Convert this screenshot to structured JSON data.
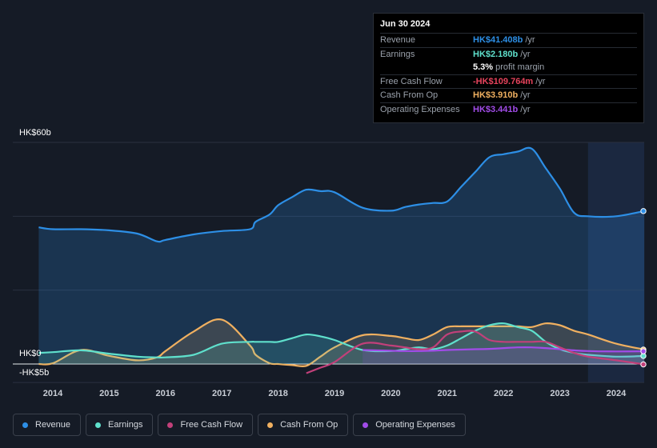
{
  "tooltip": {
    "date": "Jun 30 2024",
    "rows": [
      {
        "label": "Revenue",
        "value": "HK$41.408b",
        "unit": "/yr",
        "color": "#2d8fe6"
      },
      {
        "label": "Earnings",
        "value": "HK$2.180b",
        "unit": "/yr",
        "color": "#5fe0cc"
      },
      {
        "label": "",
        "value": "5.3%",
        "unit": "profit margin",
        "color": "#ffffff"
      },
      {
        "label": "Free Cash Flow",
        "value": "-HK$109.764m",
        "unit": "/yr",
        "color": "#e6435c"
      },
      {
        "label": "Cash From Op",
        "value": "HK$3.910b",
        "unit": "/yr",
        "color": "#f0b060"
      },
      {
        "label": "Operating Expenses",
        "value": "HK$3.441b",
        "unit": "/yr",
        "color": "#a14ce8"
      }
    ]
  },
  "chart_data": {
    "type": "area",
    "y_axis": {
      "top_label": "HK$60b",
      "zero_label": "HK$0",
      "bottom_label": "-HK$5b",
      "ylim": [
        -5,
        60
      ]
    },
    "x": [
      2013.75,
      2014.0,
      2014.5,
      2015.0,
      2015.5,
      2015.85,
      2016.0,
      2016.5,
      2017.0,
      2017.5,
      2017.6,
      2017.85,
      2018.0,
      2018.25,
      2018.5,
      2018.75,
      2019.0,
      2019.5,
      2020.0,
      2020.25,
      2020.5,
      2020.75,
      2021.0,
      2021.25,
      2021.5,
      2021.75,
      2022.0,
      2022.25,
      2022.5,
      2022.75,
      2023.0,
      2023.25,
      2023.5,
      2024.0,
      2024.5
    ],
    "x_ticks": [
      "2014",
      "2015",
      "2016",
      "2017",
      "2018",
      "2019",
      "2020",
      "2021",
      "2022",
      "2023",
      "2024"
    ],
    "x_tick_values": [
      2014,
      2015,
      2016,
      2017,
      2018,
      2019,
      2020,
      2021,
      2022,
      2023,
      2024
    ],
    "highlight_start": 2023.5,
    "series": [
      {
        "name": "Revenue",
        "color": "#2d8fe6",
        "fill": true,
        "values": [
          37.0,
          36.5,
          36.5,
          36.2,
          35.3,
          33.2,
          33.6,
          35.1,
          36.0,
          36.5,
          38.5,
          40.5,
          43.0,
          45.2,
          47.2,
          46.8,
          46.5,
          42.3,
          41.5,
          42.5,
          43.2,
          43.6,
          44.0,
          48.0,
          52.0,
          56.0,
          56.8,
          57.5,
          58.3,
          53.0,
          47.5,
          41.0,
          40.0,
          40.0,
          41.408
        ]
      },
      {
        "name": "Earnings",
        "color": "#5fe0cc",
        "fill": true,
        "values": [
          3.0,
          3.2,
          3.7,
          2.8,
          2.0,
          1.8,
          1.8,
          2.5,
          5.5,
          6.0,
          6.0,
          6.0,
          6.0,
          7.0,
          8.0,
          7.5,
          6.5,
          3.8,
          3.5,
          4.0,
          4.5,
          4.0,
          5.0,
          7.0,
          9.0,
          10.5,
          11.0,
          10.0,
          9.0,
          6.0,
          4.0,
          3.0,
          2.5,
          2.0,
          2.18
        ]
      },
      {
        "name": "Free Cash Flow",
        "color": "#c2407a",
        "fill": false,
        "values": [
          null,
          null,
          null,
          null,
          null,
          null,
          null,
          null,
          null,
          null,
          null,
          null,
          null,
          null,
          -2.5,
          -1.0,
          0.5,
          5.5,
          5.0,
          4.5,
          4.0,
          4.5,
          8.0,
          8.8,
          8.8,
          6.5,
          6.0,
          6.0,
          6.0,
          6.0,
          4.5,
          3.0,
          2.0,
          1.0,
          -0.11
        ]
      },
      {
        "name": "Cash From Op",
        "color": "#f0b060",
        "fill": true,
        "values": [
          0.0,
          0.2,
          3.8,
          2.2,
          1.0,
          1.8,
          3.5,
          8.8,
          12.0,
          5.0,
          2.5,
          0.2,
          0.0,
          -0.3,
          -0.5,
          2.0,
          4.5,
          7.8,
          7.6,
          7.0,
          6.5,
          8.0,
          10.0,
          10.2,
          10.2,
          10.2,
          10.2,
          10.2,
          10.0,
          11.0,
          10.5,
          9.0,
          8.0,
          5.5,
          3.91
        ]
      },
      {
        "name": "Operating Expenses",
        "color": "#a14ce8",
        "fill": true,
        "values": [
          null,
          null,
          null,
          null,
          null,
          null,
          null,
          null,
          null,
          null,
          null,
          null,
          null,
          null,
          null,
          null,
          null,
          3.8,
          3.6,
          3.5,
          3.5,
          3.6,
          3.8,
          3.9,
          4.0,
          4.1,
          4.3,
          4.5,
          4.5,
          4.3,
          4.0,
          3.7,
          3.5,
          3.4,
          3.441
        ]
      }
    ]
  },
  "legend": [
    {
      "label": "Revenue",
      "color": "#2d8fe6"
    },
    {
      "label": "Earnings",
      "color": "#5fe0cc"
    },
    {
      "label": "Free Cash Flow",
      "color": "#c2407a"
    },
    {
      "label": "Cash From Op",
      "color": "#f0b060"
    },
    {
      "label": "Operating Expenses",
      "color": "#a14ce8"
    }
  ]
}
